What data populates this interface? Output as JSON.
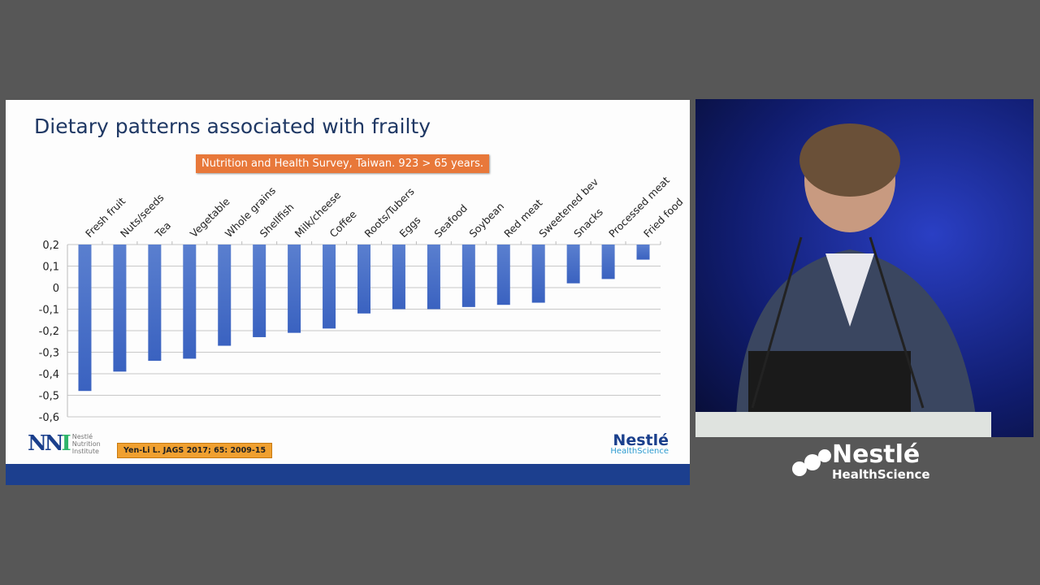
{
  "slide": {
    "title": "Dietary patterns associated with frailty",
    "survey_label": "Nutrition and Health Survey, Taiwan. 923 > 65 years.",
    "reference": "Yen-Li L. JAGS 2017; 65: 2009-15",
    "nni_logo": {
      "mark": "NNI",
      "text": [
        "Nestlé",
        "Nutrition",
        "Institute"
      ]
    },
    "brand": {
      "name": "Nestlé",
      "sub": "HealthScience"
    }
  },
  "chart_data": {
    "type": "bar",
    "title": "",
    "xlabel": "",
    "ylabel": "",
    "ylim": [
      -0.6,
      0.2
    ],
    "yticks": [
      "0,2",
      "0,1",
      "0",
      "-0,1",
      "-0,2",
      "-0,3",
      "-0,4",
      "-0,5",
      "-0,6"
    ],
    "grid": true,
    "bar_color": "#3a62c0",
    "categories": [
      "Fresh fruit",
      "Nuts/seeds",
      "Tea",
      "Vegetable",
      "Whole grains",
      "Shellfish",
      "Milk/cheese",
      "Coffee",
      "Roots/Tubers",
      "Eggs",
      "Seafood",
      "Soybean",
      "Red meat",
      "Sweetened bev",
      "Snacks",
      "Processed meat",
      "Fried food"
    ],
    "values": [
      -0.48,
      -0.39,
      -0.34,
      -0.33,
      -0.27,
      -0.23,
      -0.21,
      -0.19,
      -0.12,
      -0.1,
      -0.1,
      -0.09,
      -0.08,
      -0.07,
      0.02,
      0.04,
      0.13
    ]
  },
  "overlay_logo": {
    "name": "Nestlé",
    "sub": "HealthScience"
  }
}
